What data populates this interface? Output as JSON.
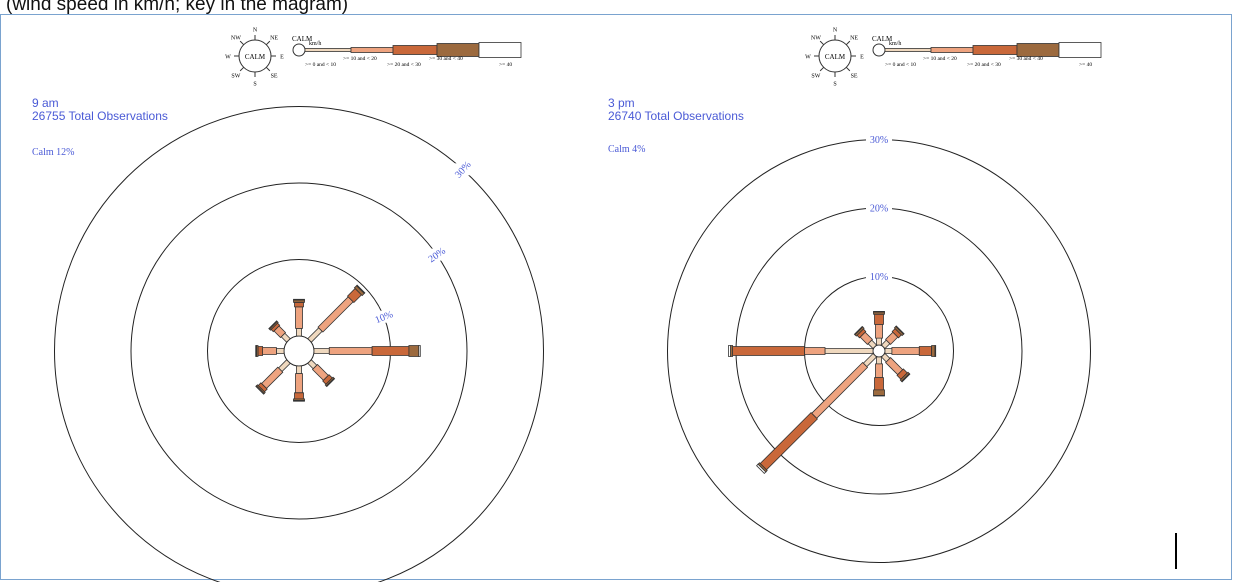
{
  "caption": "(wind speed in km/h; key in the magram)",
  "legend": {
    "calm_label": "CALM",
    "unit": "km/h",
    "compass_points": [
      "N",
      "NE",
      "E",
      "SE",
      "S",
      "SW",
      "W",
      "NW"
    ],
    "bins": [
      {
        "label": ">= 0 and < 10",
        "color": "#efd8be"
      },
      {
        "label": ">= 10 and < 20",
        "color": "#eea37f"
      },
      {
        "label": ">= 20 and < 30",
        "color": "#c9683a"
      },
      {
        "label": ">= 30 and < 40",
        "color": "#9c6a3e"
      },
      {
        "label": ">= 40",
        "color": "#ffffff"
      }
    ]
  },
  "chart_data": [
    {
      "type": "wind-rose",
      "title": "9 am",
      "subtitle": "26755 Total Observations",
      "calm_label": "Calm 12%",
      "calm_percent": 12,
      "rings": [
        10,
        20,
        30
      ],
      "ring_labels": [
        "10%",
        "20%",
        "30%"
      ],
      "directions": [
        "N",
        "NE",
        "E",
        "SE",
        "S",
        "SW",
        "W",
        "NW"
      ],
      "series": [
        {
          "bin": ">= 0 and < 10",
          "values": [
            1.0,
            2.0,
            2.0,
            1.0,
            1.0,
            1.5,
            1.0,
            1.0
          ]
        },
        {
          "bin": ">= 10 and < 20",
          "values": [
            2.8,
            5.6,
            5.6,
            2.0,
            2.5,
            3.0,
            1.8,
            1.2
          ]
        },
        {
          "bin": ">= 20 and < 30",
          "values": [
            0.6,
            1.4,
            4.8,
            0.6,
            0.8,
            0.5,
            0.6,
            0.4
          ]
        },
        {
          "bin": ">= 30 and < 40",
          "values": [
            0.3,
            0.4,
            1.3,
            0.2,
            0.2,
            0.2,
            0.2,
            0.2
          ]
        },
        {
          "bin": ">= 40",
          "values": [
            0.1,
            0.1,
            0.2,
            0.1,
            0.1,
            0.1,
            0.1,
            0.1
          ]
        }
      ]
    },
    {
      "type": "wind-rose",
      "title": "3 pm",
      "subtitle": "26740 Total Observations",
      "calm_label": "Calm 4%",
      "calm_percent": 4,
      "rings": [
        10,
        20,
        30
      ],
      "ring_labels": [
        "10%",
        "20%",
        "30%"
      ],
      "directions": [
        "N",
        "NE",
        "E",
        "SE",
        "S",
        "SW",
        "W",
        "NW"
      ],
      "series": [
        {
          "bin": ">= 0 and < 10",
          "values": [
            1.0,
            1.0,
            1.0,
            1.0,
            1.0,
            2.0,
            7.0,
            1.0
          ]
        },
        {
          "bin": ">= 10 and < 20",
          "values": [
            2.0,
            1.5,
            4.0,
            2.5,
            2.0,
            10.5,
            3.0,
            1.5
          ]
        },
        {
          "bin": ">= 20 and < 30",
          "values": [
            1.5,
            0.6,
            1.8,
            0.8,
            1.8,
            10.5,
            10.5,
            0.5
          ]
        },
        {
          "bin": ">= 30 and < 40",
          "values": [
            0.3,
            0.3,
            0.5,
            0.3,
            0.8,
            0.3,
            0.3,
            0.3
          ]
        },
        {
          "bin": ">= 40",
          "values": [
            0.1,
            0.1,
            0.1,
            0.1,
            0.1,
            0.3,
            0.3,
            0.1
          ]
        }
      ]
    }
  ]
}
